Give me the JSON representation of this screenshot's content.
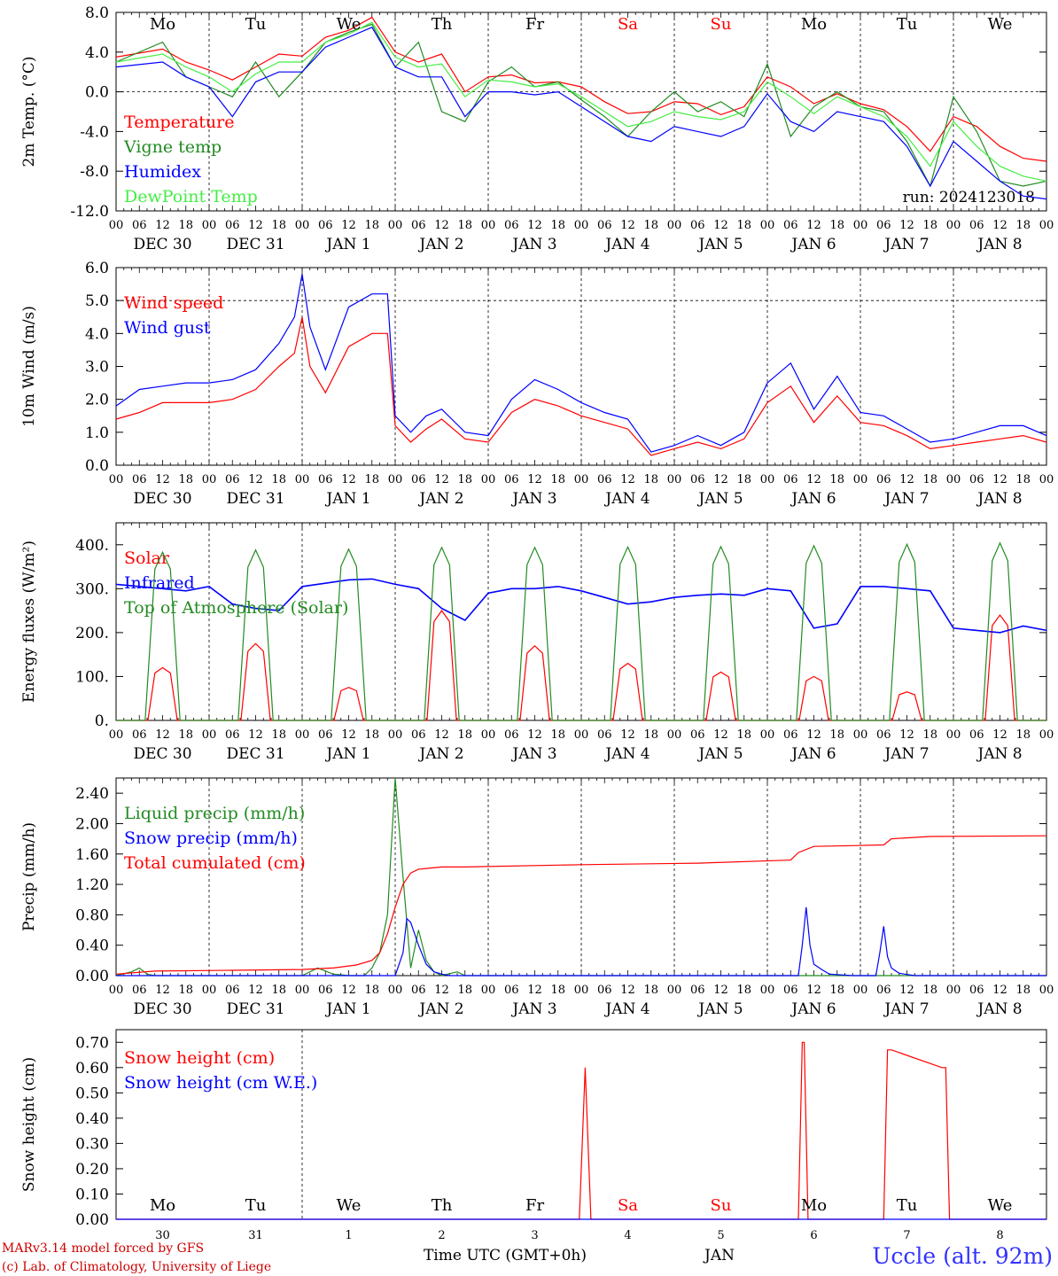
{
  "day_labels": [
    {
      "text": "Mo",
      "color": "#000000"
    },
    {
      "text": "Tu",
      "color": "#000000"
    },
    {
      "text": "We",
      "color": "#000000"
    },
    {
      "text": "Th",
      "color": "#000000"
    },
    {
      "text": "Fr",
      "color": "#000000"
    },
    {
      "text": "Sa",
      "color": "#ff0000"
    },
    {
      "text": "Su",
      "color": "#ff0000"
    },
    {
      "text": "Mo",
      "color": "#000000"
    },
    {
      "text": "Tu",
      "color": "#000000"
    },
    {
      "text": "We",
      "color": "#000000"
    }
  ],
  "date_labels": [
    "DEC 30",
    "DEC 31",
    "JAN  1",
    "JAN  2",
    "JAN  3",
    "JAN  4",
    "JAN  5",
    "JAN  6",
    "JAN  7",
    "JAN  8"
  ],
  "hour_ticks": [
    "00",
    "06",
    "12",
    "18"
  ],
  "last_hour_tick": "00",
  "day_numbers": [
    "30",
    "31",
    "1",
    "2",
    "3",
    "4",
    "5",
    "6",
    "7",
    "8"
  ],
  "run_label": "run: 2024123018",
  "x_axis_title": "Time UTC (GMT+0h)",
  "month_label": "JAN",
  "location": "Uccle (alt. 92m)",
  "credit_line1": "MARv3.14 model forced by GFS",
  "credit_line2": "(c) Lab. of Climatology, University of Liege",
  "colors": {
    "red": "#ff0000",
    "dark_green": "#228b22",
    "blue": "#0000ff",
    "light_green": "#44ee44",
    "credit_red": "#cc0000",
    "location_blue": "#3333ff"
  },
  "chart_data": [
    {
      "type": "line",
      "ylabel": "2m Temp. (°C)",
      "ylim": [
        -12,
        8
      ],
      "yticks": [
        "8.0",
        "4.0",
        "0.0",
        "-4.0",
        "-8.0",
        "-12.0"
      ],
      "ytick_values": [
        8,
        4,
        0,
        -4,
        -8,
        -12
      ],
      "dashed_reference": 0,
      "x_unit": "hours since DEC 30 00 UTC",
      "xlim": [
        0,
        240
      ],
      "series": [
        {
          "name": "Temperature",
          "color": "#ff0000",
          "x": [
            0,
            12,
            18,
            24,
            30,
            36,
            42,
            48,
            54,
            60,
            66,
            72,
            78,
            84,
            90,
            96,
            102,
            108,
            114,
            120,
            126,
            132,
            138,
            144,
            150,
            156,
            162,
            168,
            174,
            180,
            186,
            192,
            198,
            204,
            210,
            216,
            222,
            228,
            234,
            240
          ],
          "y": [
            3.5,
            4.3,
            3.0,
            2.2,
            1.2,
            2.5,
            3.8,
            3.6,
            5.5,
            6.2,
            7.5,
            4.0,
            3.0,
            3.8,
            0.0,
            1.5,
            1.7,
            0.9,
            1.0,
            0.5,
            -1.0,
            -2.2,
            -2.0,
            -1.0,
            -1.2,
            -2.3,
            -1.5,
            1.5,
            0.5,
            -1.2,
            -0.2,
            -1.2,
            -1.8,
            -3.5,
            -6.0,
            -2.5,
            -3.5,
            -5.5,
            -6.7,
            -7.0
          ]
        },
        {
          "name": "Vigne temp",
          "color": "#228b22",
          "x": [
            0,
            12,
            18,
            24,
            30,
            36,
            42,
            48,
            54,
            60,
            66,
            72,
            78,
            84,
            90,
            96,
            102,
            108,
            114,
            120,
            126,
            132,
            138,
            144,
            150,
            156,
            162,
            168,
            174,
            180,
            186,
            192,
            198,
            204,
            210,
            216,
            222,
            228,
            234,
            240
          ],
          "y": [
            3.0,
            5.0,
            1.5,
            0.5,
            -0.5,
            3.0,
            -0.5,
            2.0,
            5.0,
            6.0,
            6.8,
            2.5,
            5.0,
            -2.0,
            -3.0,
            1.0,
            2.5,
            0.5,
            1.0,
            -0.8,
            -2.5,
            -4.5,
            -2.0,
            0.0,
            -2.0,
            -1.0,
            -2.5,
            2.8,
            -4.5,
            -1.5,
            0.0,
            -1.5,
            -2.0,
            -5.0,
            -9.5,
            -0.5,
            -4.0,
            -9.0,
            -9.5,
            -9.0
          ]
        },
        {
          "name": "Humidex",
          "color": "#0000ff",
          "x": [
            0,
            12,
            18,
            24,
            30,
            36,
            42,
            48,
            54,
            60,
            66,
            72,
            78,
            84,
            90,
            96,
            102,
            108,
            114,
            120,
            126,
            132,
            138,
            144,
            150,
            156,
            162,
            168,
            174,
            180,
            186,
            192,
            198,
            204,
            210,
            216,
            222,
            228,
            234,
            240
          ],
          "y": [
            2.5,
            3.0,
            1.5,
            0.5,
            -2.5,
            1.0,
            2.0,
            2.0,
            4.5,
            5.5,
            6.5,
            2.5,
            1.5,
            1.5,
            -2.5,
            0.0,
            0.0,
            -0.3,
            0.0,
            -1.5,
            -3.0,
            -4.5,
            -5.0,
            -3.5,
            -4.0,
            -4.5,
            -3.5,
            -0.2,
            -3.0,
            -4.0,
            -2.0,
            -2.5,
            -3.0,
            -5.5,
            -9.5,
            -5.0,
            -7.0,
            -9.0,
            -10.5,
            -10.8
          ]
        },
        {
          "name": "DewPoint Temp",
          "color": "#44ee44",
          "x": [
            0,
            12,
            18,
            24,
            30,
            36,
            42,
            48,
            54,
            60,
            66,
            72,
            78,
            84,
            90,
            96,
            102,
            108,
            114,
            120,
            126,
            132,
            138,
            144,
            150,
            156,
            162,
            168,
            174,
            180,
            186,
            192,
            198,
            204,
            210,
            216,
            222,
            228,
            234,
            240
          ],
          "y": [
            3.0,
            3.8,
            2.5,
            1.5,
            0.0,
            1.8,
            3.0,
            3.0,
            5.0,
            5.8,
            7.0,
            3.5,
            2.5,
            2.8,
            -0.5,
            1.2,
            1.0,
            0.5,
            0.8,
            -0.5,
            -2.0,
            -3.5,
            -3.0,
            -2.0,
            -2.5,
            -2.8,
            -2.0,
            1.0,
            -0.5,
            -2.2,
            -0.5,
            -1.5,
            -2.5,
            -4.5,
            -7.5,
            -3.0,
            -5.5,
            -7.5,
            -8.5,
            -9.0
          ]
        }
      ]
    },
    {
      "type": "line",
      "ylabel": "10m Wind (m/s)",
      "ylim": [
        0,
        6
      ],
      "yticks": [
        "6.0",
        "5.0",
        "4.0",
        "3.0",
        "2.0",
        "1.0",
        "0.0"
      ],
      "ytick_values": [
        6,
        5,
        4,
        3,
        2,
        1,
        0
      ],
      "dashed_reference": 5,
      "x_unit": "hours since DEC 30 00 UTC",
      "xlim": [
        0,
        240
      ],
      "series": [
        {
          "name": "Wind speed",
          "color": "#ff0000",
          "x": [
            0,
            6,
            12,
            18,
            24,
            30,
            36,
            42,
            46,
            48,
            50,
            54,
            60,
            66,
            70,
            72,
            76,
            80,
            84,
            90,
            96,
            102,
            108,
            114,
            120,
            126,
            132,
            138,
            144,
            150,
            156,
            162,
            168,
            174,
            180,
            186,
            192,
            198,
            204,
            210,
            216,
            222,
            228,
            234,
            240
          ],
          "y": [
            1.4,
            1.6,
            1.9,
            1.9,
            1.9,
            2.0,
            2.3,
            3.0,
            3.4,
            4.5,
            3.0,
            2.2,
            3.6,
            4.0,
            4.0,
            1.2,
            0.7,
            1.1,
            1.4,
            0.8,
            0.7,
            1.6,
            2.0,
            1.8,
            1.5,
            1.3,
            1.1,
            0.3,
            0.5,
            0.7,
            0.5,
            0.8,
            1.9,
            2.4,
            1.3,
            2.1,
            1.3,
            1.2,
            0.9,
            0.5,
            0.6,
            0.7,
            0.8,
            0.9,
            0.7
          ]
        },
        {
          "name": "Wind gust",
          "color": "#0000ff",
          "x": [
            0,
            6,
            12,
            18,
            24,
            30,
            36,
            42,
            46,
            48,
            50,
            54,
            60,
            66,
            70,
            72,
            76,
            80,
            84,
            90,
            96,
            102,
            108,
            114,
            120,
            126,
            132,
            138,
            144,
            150,
            156,
            162,
            168,
            174,
            180,
            186,
            192,
            198,
            204,
            210,
            216,
            222,
            228,
            234,
            240
          ],
          "y": [
            1.8,
            2.3,
            2.4,
            2.5,
            2.5,
            2.6,
            2.9,
            3.7,
            4.5,
            5.8,
            4.2,
            2.9,
            4.8,
            5.2,
            5.2,
            1.5,
            1.0,
            1.5,
            1.7,
            1.0,
            0.9,
            2.0,
            2.6,
            2.3,
            1.9,
            1.6,
            1.4,
            0.4,
            0.6,
            0.9,
            0.6,
            1.0,
            2.5,
            3.1,
            1.7,
            2.7,
            1.6,
            1.5,
            1.1,
            0.7,
            0.8,
            1.0,
            1.2,
            1.2,
            0.9
          ]
        }
      ]
    },
    {
      "type": "line",
      "ylabel": "Energy fluxes (W/m²)",
      "ylim": [
        0,
        450
      ],
      "yticks": [
        "400.",
        "300.",
        "200.",
        "100.",
        "0."
      ],
      "ytick_values": [
        400,
        300,
        200,
        100,
        0
      ],
      "x_unit": "hours since DEC 30 00 UTC",
      "xlim": [
        0,
        240
      ],
      "series": [
        {
          "name": "Solar",
          "color": "#ff0000",
          "peaks": [
            120,
            175,
            75,
            250,
            170,
            130,
            110,
            100,
            65,
            240
          ]
        },
        {
          "name": "Infrared",
          "color": "#0000ff",
          "x": [
            0,
            12,
            18,
            24,
            30,
            36,
            42,
            48,
            60,
            66,
            72,
            78,
            84,
            90,
            96,
            102,
            108,
            114,
            120,
            126,
            132,
            138,
            144,
            150,
            156,
            162,
            168,
            174,
            180,
            186,
            192,
            198,
            204,
            210,
            216,
            222,
            228,
            234,
            240
          ],
          "y": [
            310,
            300,
            295,
            305,
            265,
            255,
            250,
            305,
            320,
            322,
            310,
            300,
            255,
            228,
            290,
            300,
            300,
            305,
            295,
            280,
            265,
            270,
            280,
            285,
            288,
            285,
            300,
            295,
            210,
            220,
            305,
            305,
            300,
            295,
            210,
            205,
            200,
            215,
            205
          ]
        },
        {
          "name": "Top of Atmosphere (Solar)",
          "color": "#228b22",
          "peaks": [
            383,
            388,
            390,
            394,
            394,
            395,
            396,
            398,
            401,
            404
          ]
        }
      ]
    },
    {
      "type": "line",
      "ylabel": "Precip (mm/h)",
      "ylim": [
        0,
        2.6
      ],
      "yticks": [
        "2.40",
        "2.00",
        "1.60",
        "1.20",
        "0.80",
        "0.40",
        "0.00"
      ],
      "ytick_values": [
        2.4,
        2.0,
        1.6,
        1.2,
        0.8,
        0.4,
        0.0
      ],
      "x_unit": "hours since DEC 30 00 UTC",
      "xlim": [
        0,
        240
      ],
      "series": [
        {
          "name": "Liquid precip (mm/h)",
          "color": "#228b22",
          "x": [
            0,
            4,
            6,
            8,
            10,
            20,
            40,
            48,
            52,
            56,
            60,
            64,
            66,
            68,
            70,
            72,
            74,
            76,
            78,
            80,
            82,
            84,
            88,
            90,
            96,
            240
          ],
          "y": [
            0.0,
            0.05,
            0.1,
            0.02,
            0.0,
            0.0,
            0.0,
            0.0,
            0.1,
            0.02,
            0.0,
            0.0,
            0.1,
            0.3,
            0.8,
            2.6,
            1.3,
            0.1,
            0.6,
            0.2,
            0.05,
            0.0,
            0.05,
            0.0,
            0.0,
            0.0
          ]
        },
        {
          "name": "Snow precip (mm/h)",
          "color": "#0000ff",
          "x": [
            0,
            72,
            74,
            75,
            76,
            77,
            78,
            80,
            82,
            84,
            86,
            90,
            176,
            177,
            178,
            179,
            180,
            182,
            184,
            190,
            196,
            197,
            198,
            199,
            200,
            202,
            206,
            240
          ],
          "y": [
            0.0,
            0.0,
            0.3,
            0.75,
            0.7,
            0.55,
            0.4,
            0.15,
            0.05,
            0.02,
            0.0,
            0.0,
            0.0,
            0.4,
            0.9,
            0.4,
            0.15,
            0.08,
            0.02,
            0.0,
            0.0,
            0.3,
            0.65,
            0.25,
            0.1,
            0.03,
            0.0,
            0.0
          ]
        },
        {
          "name": "Total cumulated (cm)",
          "color": "#ff0000",
          "x": [
            0,
            10,
            30,
            48,
            56,
            62,
            66,
            68,
            70,
            72,
            74,
            76,
            78,
            80,
            84,
            90,
            120,
            150,
            174,
            176,
            180,
            190,
            198,
            200,
            210,
            240
          ],
          "y": [
            0.02,
            0.06,
            0.07,
            0.08,
            0.1,
            0.14,
            0.2,
            0.3,
            0.55,
            0.9,
            1.2,
            1.35,
            1.4,
            1.41,
            1.43,
            1.43,
            1.46,
            1.48,
            1.52,
            1.62,
            1.7,
            1.71,
            1.72,
            1.8,
            1.83,
            1.84
          ]
        }
      ]
    },
    {
      "type": "line",
      "ylabel": "Snow height (cm)",
      "ylim": [
        0,
        0.75
      ],
      "yticks": [
        "0.70",
        "0.60",
        "0.50",
        "0.40",
        "0.30",
        "0.20",
        "0.10",
        "0.00"
      ],
      "ytick_values": [
        0.7,
        0.6,
        0.5,
        0.4,
        0.3,
        0.2,
        0.1,
        0.0
      ],
      "x_unit": "hours since DEC 30 00 UTC",
      "xlim": [
        0,
        240
      ],
      "series": [
        {
          "name": "Snow height (cm)",
          "color": "#ff0000",
          "x": [
            0,
            119.5,
            121,
            122.5,
            176,
            177,
            177.5,
            178.5,
            198,
            199,
            200,
            213,
            214,
            215,
            240
          ],
          "y": [
            0,
            0,
            0.6,
            0,
            0,
            0.7,
            0.7,
            0,
            0,
            0.67,
            0.67,
            0.6,
            0.6,
            0,
            0
          ]
        },
        {
          "name": "Snow height (cm W.E.)",
          "color": "#0000ff",
          "x": [
            0,
            240
          ],
          "y": [
            0,
            0
          ]
        }
      ]
    }
  ]
}
